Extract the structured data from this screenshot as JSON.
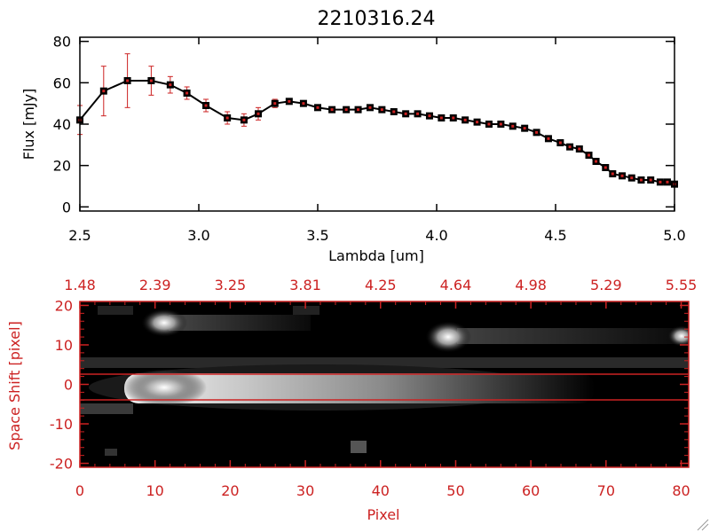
{
  "chart_data": [
    {
      "type": "line",
      "title": "2210316.24",
      "xlabel": "Lambda [um]",
      "ylabel": "Flux [mJy]",
      "xlim": [
        2.5,
        5.0
      ],
      "ylim": [
        -2,
        82
      ],
      "x_ticks": [
        "2.5",
        "3.0",
        "3.5",
        "4.0",
        "4.5",
        "5.0"
      ],
      "y_ticks": [
        "0",
        "20",
        "40",
        "60",
        "80"
      ],
      "series": [
        {
          "name": "flux",
          "x": [
            2.5,
            2.6,
            2.7,
            2.8,
            2.88,
            2.95,
            3.03,
            3.12,
            3.19,
            3.25,
            3.32,
            3.38,
            3.44,
            3.5,
            3.56,
            3.62,
            3.67,
            3.72,
            3.77,
            3.82,
            3.87,
            3.92,
            3.97,
            4.02,
            4.07,
            4.12,
            4.17,
            4.22,
            4.27,
            4.32,
            4.37,
            4.42,
            4.47,
            4.52,
            4.56,
            4.6,
            4.64,
            4.67,
            4.71,
            4.74,
            4.78,
            4.82,
            4.86,
            4.9,
            4.94,
            4.97,
            5.0
          ],
          "y": [
            42,
            56,
            61,
            61,
            59,
            55,
            49,
            43,
            42,
            45,
            50,
            51,
            50,
            48,
            47,
            47,
            47,
            48,
            47,
            46,
            45,
            45,
            44,
            43,
            43,
            42,
            41,
            40,
            40,
            39,
            38,
            36,
            33,
            31,
            29,
            28,
            25,
            22,
            19,
            16,
            15,
            14,
            13,
            13,
            12,
            12,
            11
          ],
          "err": [
            7,
            12,
            13,
            7,
            4,
            3,
            3,
            3,
            3,
            3,
            2,
            1,
            1,
            1,
            1,
            1,
            1,
            1,
            1,
            1,
            1,
            1,
            1,
            1,
            1,
            1,
            1,
            1,
            1,
            1,
            1,
            1,
            1,
            1,
            1,
            1,
            1,
            1,
            1,
            1,
            1,
            1,
            1,
            1,
            1,
            1,
            1
          ]
        }
      ]
    },
    {
      "type": "heatmap",
      "xlabel": "Pixel",
      "ylabel": "Space Shift [pixel]",
      "xlim": [
        0,
        81
      ],
      "ylim": [
        -21,
        21
      ],
      "x_ticks": [
        "0",
        "10",
        "20",
        "30",
        "40",
        "50",
        "60",
        "70",
        "80"
      ],
      "y_ticks": [
        "-20",
        "-10",
        "0",
        "10",
        "20"
      ],
      "top_ticks": [
        "1.48",
        "2.39",
        "3.25",
        "3.81",
        "4.25",
        "4.64",
        "4.98",
        "5.29",
        "5.55"
      ],
      "aperture_lines": [
        3,
        -3
      ],
      "sources": [
        {
          "name": "main-trace",
          "x": 12,
          "y": 0
        },
        {
          "name": "blob-1",
          "x": 12,
          "y": 16
        },
        {
          "name": "blob-2",
          "x": 50,
          "y": 11
        },
        {
          "name": "blob-3",
          "x": 80,
          "y": 12
        }
      ]
    }
  ]
}
